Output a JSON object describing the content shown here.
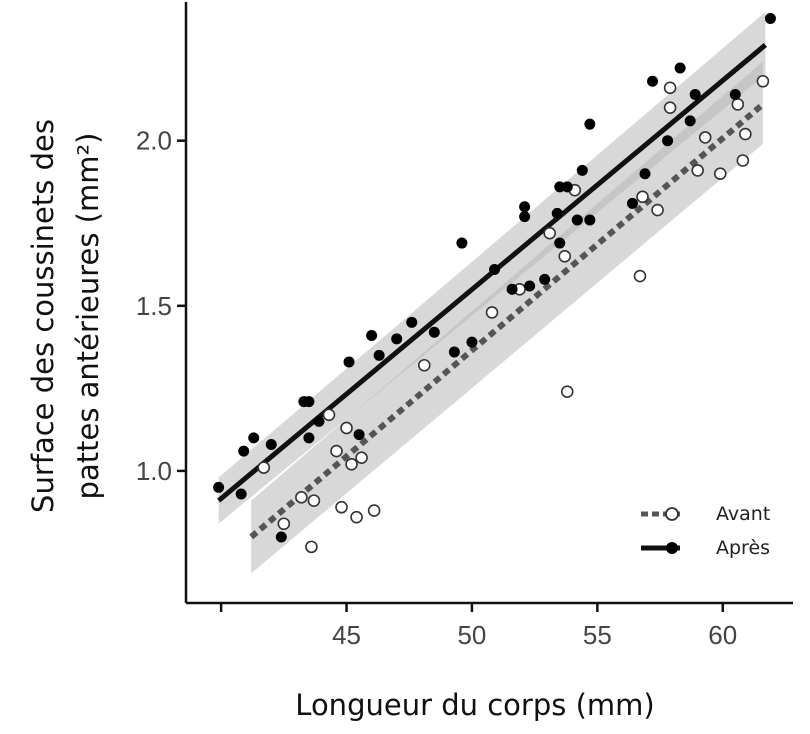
{
  "chart_data": {
    "type": "scatter",
    "title": "",
    "xlabel": "Longueur du corps (mm)",
    "ylabel_line1": "Surface des coussinets des",
    "ylabel_line2": "pattes antérieures (mm²)",
    "xlim": [
      38.6,
      62.8
    ],
    "ylim": [
      0.6,
      2.42
    ],
    "x_ticks": [
      {
        "value": 45,
        "label": "45"
      },
      {
        "value": 50,
        "label": "50"
      },
      {
        "value": 55,
        "label": "55"
      },
      {
        "value": 60,
        "label": "60"
      }
    ],
    "y_ticks": [
      {
        "value": 1.0,
        "label": "1.0"
      },
      {
        "value": 1.5,
        "label": "1.5"
      },
      {
        "value": 2.0,
        "label": "2.0"
      }
    ],
    "grid": false,
    "legend_position": "bottom-right",
    "series": [
      {
        "name": "Avant",
        "marker": "open-circle",
        "line_style": "dotted",
        "color": "#555555",
        "fit": {
          "x": [
            41.2,
            61.6
          ],
          "y": [
            0.8,
            2.11
          ]
        },
        "band": {
          "x": [
            41.2,
            61.6
          ],
          "lower": [
            0.69,
            1.99
          ],
          "upper": [
            0.91,
            2.24
          ]
        },
        "points": [
          {
            "x": 41.7,
            "y": 1.01
          },
          {
            "x": 42.5,
            "y": 0.84
          },
          {
            "x": 43.2,
            "y": 0.92
          },
          {
            "x": 43.6,
            "y": 0.77
          },
          {
            "x": 43.7,
            "y": 0.91
          },
          {
            "x": 44.3,
            "y": 1.17
          },
          {
            "x": 44.6,
            "y": 1.06
          },
          {
            "x": 44.8,
            "y": 0.89
          },
          {
            "x": 45.0,
            "y": 1.13
          },
          {
            "x": 45.2,
            "y": 1.02
          },
          {
            "x": 45.4,
            "y": 0.86
          },
          {
            "x": 45.6,
            "y": 1.04
          },
          {
            "x": 46.1,
            "y": 0.88
          },
          {
            "x": 48.1,
            "y": 1.32
          },
          {
            "x": 50.8,
            "y": 1.48
          },
          {
            "x": 51.9,
            "y": 1.55
          },
          {
            "x": 53.1,
            "y": 1.72
          },
          {
            "x": 53.7,
            "y": 1.65
          },
          {
            "x": 53.8,
            "y": 1.24
          },
          {
            "x": 54.1,
            "y": 1.85
          },
          {
            "x": 56.7,
            "y": 1.59
          },
          {
            "x": 56.8,
            "y": 1.83
          },
          {
            "x": 57.4,
            "y": 1.79
          },
          {
            "x": 57.9,
            "y": 2.1
          },
          {
            "x": 57.9,
            "y": 2.16
          },
          {
            "x": 59.0,
            "y": 1.91
          },
          {
            "x": 59.3,
            "y": 2.01
          },
          {
            "x": 59.9,
            "y": 1.9
          },
          {
            "x": 60.6,
            "y": 2.11
          },
          {
            "x": 60.8,
            "y": 1.94
          },
          {
            "x": 60.9,
            "y": 2.02
          },
          {
            "x": 61.6,
            "y": 2.18
          }
        ]
      },
      {
        "name": "Après",
        "marker": "filled-circle",
        "line_style": "solid",
        "color": "#111111",
        "fit": {
          "x": [
            39.9,
            61.7
          ],
          "y": [
            0.91,
            2.29
          ]
        },
        "band": {
          "x": [
            39.9,
            61.7
          ],
          "lower": [
            0.84,
            2.2
          ],
          "upper": [
            0.98,
            2.39
          ]
        },
        "points": [
          {
            "x": 39.9,
            "y": 0.95
          },
          {
            "x": 40.8,
            "y": 0.93
          },
          {
            "x": 40.9,
            "y": 1.06
          },
          {
            "x": 41.3,
            "y": 1.1
          },
          {
            "x": 42.0,
            "y": 1.08
          },
          {
            "x": 42.4,
            "y": 0.8
          },
          {
            "x": 43.3,
            "y": 1.21
          },
          {
            "x": 43.5,
            "y": 1.21
          },
          {
            "x": 43.5,
            "y": 1.1
          },
          {
            "x": 43.9,
            "y": 1.15
          },
          {
            "x": 45.1,
            "y": 1.33
          },
          {
            "x": 45.5,
            "y": 1.11
          },
          {
            "x": 46.0,
            "y": 1.41
          },
          {
            "x": 46.3,
            "y": 1.35
          },
          {
            "x": 47.0,
            "y": 1.4
          },
          {
            "x": 47.6,
            "y": 1.45
          },
          {
            "x": 48.5,
            "y": 1.42
          },
          {
            "x": 49.3,
            "y": 1.36
          },
          {
            "x": 49.6,
            "y": 1.69
          },
          {
            "x": 50.0,
            "y": 1.39
          },
          {
            "x": 50.9,
            "y": 1.61
          },
          {
            "x": 51.6,
            "y": 1.55
          },
          {
            "x": 52.1,
            "y": 1.8
          },
          {
            "x": 52.1,
            "y": 1.77
          },
          {
            "x": 52.3,
            "y": 1.56
          },
          {
            "x": 52.9,
            "y": 1.58
          },
          {
            "x": 53.4,
            "y": 1.78
          },
          {
            "x": 53.5,
            "y": 1.86
          },
          {
            "x": 53.5,
            "y": 1.69
          },
          {
            "x": 53.8,
            "y": 1.86
          },
          {
            "x": 54.2,
            "y": 1.76
          },
          {
            "x": 54.4,
            "y": 1.91
          },
          {
            "x": 54.7,
            "y": 1.76
          },
          {
            "x": 54.7,
            "y": 2.05
          },
          {
            "x": 56.4,
            "y": 1.81
          },
          {
            "x": 56.9,
            "y": 1.9
          },
          {
            "x": 57.2,
            "y": 2.18
          },
          {
            "x": 57.8,
            "y": 2.0
          },
          {
            "x": 58.3,
            "y": 2.22
          },
          {
            "x": 58.7,
            "y": 2.06
          },
          {
            "x": 58.9,
            "y": 2.14
          },
          {
            "x": 60.5,
            "y": 2.14
          },
          {
            "x": 61.9,
            "y": 2.37
          }
        ]
      }
    ]
  }
}
